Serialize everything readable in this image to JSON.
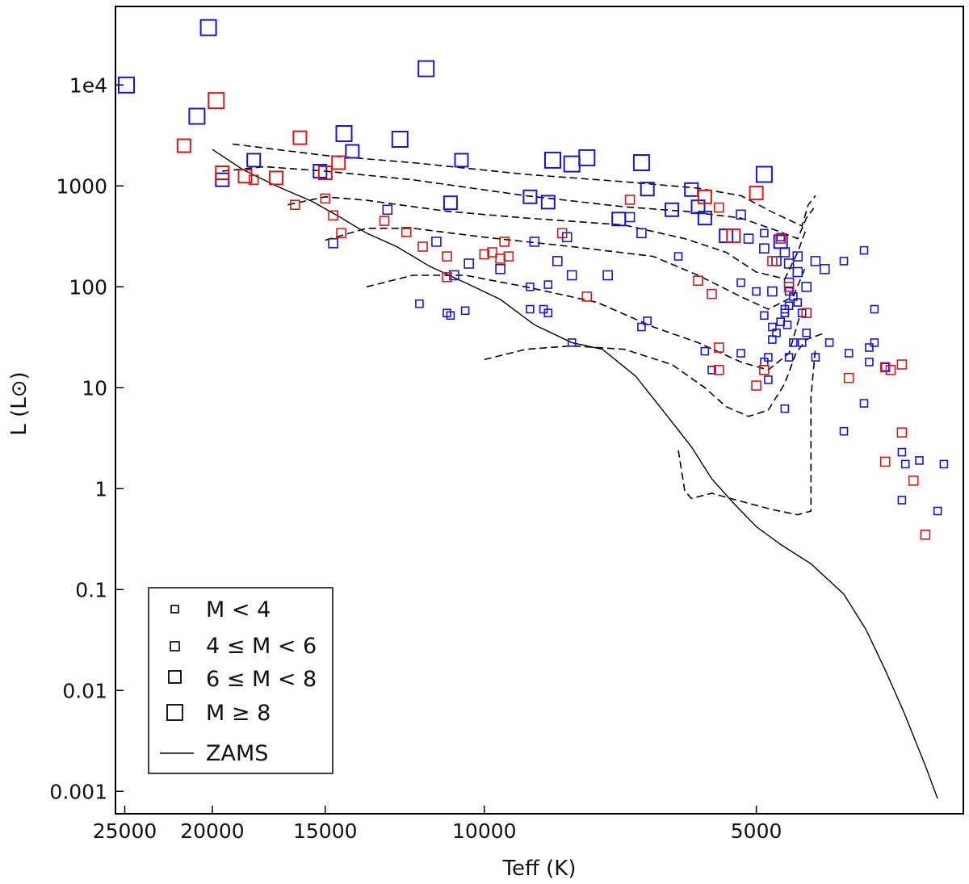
{
  "chart_data": {
    "type": "scatter",
    "title": "",
    "xlabel": "Teff (K)",
    "ylabel": "L (L⊙)",
    "x_scale": "log-reversed",
    "y_scale": "log",
    "xlim": [
      25600,
      2950
    ],
    "ylim": [
      0.0006,
      60000
    ],
    "x_ticks": [
      {
        "value": 25000,
        "label": "25000"
      },
      {
        "value": 20000,
        "label": "20000"
      },
      {
        "value": 15000,
        "label": "15000"
      },
      {
        "value": 10000,
        "label": "10000"
      },
      {
        "value": 5000,
        "label": "5000"
      }
    ],
    "y_ticks": [
      {
        "value": 10000,
        "label": "1e4"
      },
      {
        "value": 1000,
        "label": "1000"
      },
      {
        "value": 100,
        "label": "100"
      },
      {
        "value": 10,
        "label": "10"
      },
      {
        "value": 1,
        "label": "1"
      },
      {
        "value": 0.1,
        "label": "0.1"
      },
      {
        "value": 0.01,
        "label": "0.01"
      },
      {
        "value": 0.001,
        "label": "0.001"
      }
    ],
    "grid": false,
    "legend_position": "bottom-left",
    "legend": [
      {
        "label": "M < 4",
        "marker": "square",
        "size_class": 0
      },
      {
        "label": "4 ≤ M < 6",
        "marker": "square",
        "size_class": 1
      },
      {
        "label": "6 ≤ M < 8",
        "marker": "square",
        "size_class": 2
      },
      {
        "label": "M ≥ 8",
        "marker": "square",
        "size_class": 3
      },
      {
        "label": "ZAMS",
        "marker": "line"
      }
    ],
    "colors": {
      "blue": "#1515dd",
      "red": "#dd1515",
      "line": "#000000"
    },
    "zams": [
      [
        20000,
        2300
      ],
      [
        18500,
        1450
      ],
      [
        17000,
        1000
      ],
      [
        15500,
        700
      ],
      [
        14500,
        500
      ],
      [
        13500,
        340
      ],
      [
        12500,
        250
      ],
      [
        11500,
        160
      ],
      [
        10500,
        110
      ],
      [
        9600,
        75
      ],
      [
        8800,
        42
      ],
      [
        8000,
        28
      ],
      [
        7400,
        24
      ],
      [
        6800,
        13
      ],
      [
        6300,
        5.5
      ],
      [
        5900,
        2.6
      ],
      [
        5600,
        1.25
      ],
      [
        5300,
        0.72
      ],
      [
        5000,
        0.42
      ],
      [
        4700,
        0.28
      ],
      [
        4350,
        0.18
      ],
      [
        4000,
        0.09
      ],
      [
        3780,
        0.04
      ],
      [
        3600,
        0.016
      ],
      [
        3430,
        0.006
      ],
      [
        3250,
        0.0018
      ],
      [
        3150,
        0.00085
      ]
    ],
    "tracks": [
      [
        [
          19000,
          2600
        ],
        [
          17000,
          2300
        ],
        [
          15000,
          2000
        ],
        [
          12000,
          1700
        ],
        [
          9000,
          1300
        ],
        [
          7000,
          1100
        ],
        [
          5800,
          950
        ],
        [
          5200,
          800
        ],
        [
          4800,
          550
        ],
        [
          4450,
          400
        ],
        [
          4380,
          650
        ],
        [
          4300,
          800
        ]
      ],
      [
        [
          19500,
          1400
        ],
        [
          17500,
          1550
        ],
        [
          15000,
          1400
        ],
        [
          12000,
          1150
        ],
        [
          9000,
          800
        ],
        [
          7000,
          620
        ],
        [
          6000,
          560
        ],
        [
          5200,
          480
        ],
        [
          4700,
          350
        ],
        [
          4500,
          300
        ],
        [
          4400,
          480
        ],
        [
          4320,
          600
        ]
      ],
      [
        [
          16500,
          650
        ],
        [
          15000,
          780
        ],
        [
          13500,
          720
        ],
        [
          11000,
          560
        ],
        [
          9000,
          480
        ],
        [
          7000,
          410
        ],
        [
          6000,
          300
        ],
        [
          5400,
          220
        ],
        [
          5000,
          140
        ],
        [
          4650,
          120
        ],
        [
          4500,
          220
        ],
        [
          4400,
          380
        ]
      ],
      [
        [
          15000,
          290
        ],
        [
          13500,
          380
        ],
        [
          12000,
          380
        ],
        [
          10000,
          310
        ],
        [
          8000,
          250
        ],
        [
          6500,
          200
        ],
        [
          5800,
          130
        ],
        [
          5200,
          80
        ],
        [
          4850,
          60
        ],
        [
          4550,
          80
        ],
        [
          4420,
          150
        ]
      ],
      [
        [
          13500,
          100
        ],
        [
          12000,
          130
        ],
        [
          10500,
          130
        ],
        [
          9000,
          100
        ],
        [
          7500,
          70
        ],
        [
          6500,
          40
        ],
        [
          5800,
          28
        ],
        [
          5200,
          18
        ],
        [
          4850,
          15
        ],
        [
          4600,
          22
        ],
        [
          4480,
          50
        ]
      ],
      [
        [
          10000,
          19
        ],
        [
          9000,
          24
        ],
        [
          8000,
          26
        ],
        [
          7000,
          24
        ],
        [
          6200,
          17
        ],
        [
          5700,
          10
        ],
        [
          5400,
          6.5
        ],
        [
          5100,
          5.2
        ],
        [
          4850,
          6
        ],
        [
          4650,
          11
        ],
        [
          4520,
          22
        ],
        [
          4400,
          30
        ],
        [
          4200,
          35
        ]
      ],
      [
        [
          6100,
          2.4
        ],
        [
          6000,
          0.95
        ],
        [
          5900,
          0.8
        ],
        [
          5600,
          0.9
        ],
        [
          5200,
          0.75
        ],
        [
          4800,
          0.62
        ],
        [
          4500,
          0.55
        ],
        [
          4350,
          0.6
        ],
        [
          4350,
          8
        ],
        [
          4300,
          25
        ]
      ]
    ],
    "series": [
      {
        "name": "blue",
        "color": "blue",
        "points": [
          [
            24900,
            10000,
            3
          ],
          [
            20200,
            37000,
            3
          ],
          [
            20800,
            4900,
            3
          ],
          [
            11600,
            14500,
            3
          ],
          [
            14300,
            3300,
            3
          ],
          [
            12400,
            2900,
            3
          ],
          [
            8400,
            1800,
            3
          ],
          [
            7700,
            1900,
            3
          ],
          [
            8000,
            1650,
            3
          ],
          [
            6700,
            1700,
            3
          ],
          [
            4900,
            1300,
            3
          ],
          [
            14000,
            2200,
            2
          ],
          [
            18000,
            1800,
            2
          ],
          [
            19500,
            1150,
            2
          ],
          [
            15200,
            1400,
            2
          ],
          [
            10600,
            1800,
            2
          ],
          [
            6600,
            930,
            2
          ],
          [
            5900,
            920,
            2
          ],
          [
            5800,
            620,
            2
          ],
          [
            5700,
            480,
            2
          ],
          [
            6200,
            580,
            2
          ],
          [
            5400,
            320,
            2
          ],
          [
            4700,
            280,
            2
          ],
          [
            7100,
            470,
            2
          ],
          [
            10900,
            680,
            2
          ],
          [
            8900,
            780,
            2
          ],
          [
            8500,
            690,
            2
          ],
          [
            5100,
            300,
            1
          ],
          [
            4900,
            240,
            1
          ],
          [
            4750,
            180,
            1
          ],
          [
            4650,
            220,
            1
          ],
          [
            4500,
            200,
            1
          ],
          [
            4800,
            90,
            1
          ],
          [
            4600,
            110,
            1
          ],
          [
            6900,
            490,
            1
          ],
          [
            6700,
            340,
            1
          ],
          [
            7300,
            130,
            1
          ],
          [
            12800,
            580,
            1
          ],
          [
            14700,
            270,
            1
          ],
          [
            10400,
            170,
            1
          ],
          [
            9600,
            150,
            1
          ],
          [
            11300,
            280,
            1
          ],
          [
            10800,
            130,
            1
          ],
          [
            8800,
            280,
            1
          ],
          [
            8000,
            130,
            1
          ],
          [
            8100,
            310,
            1
          ],
          [
            8300,
            180,
            1
          ],
          [
            6100,
            200,
            0
          ],
          [
            5200,
            520,
            1
          ],
          [
            4600,
            170,
            1
          ],
          [
            4500,
            140,
            1
          ],
          [
            4400,
            100,
            1
          ],
          [
            4300,
            180,
            1
          ],
          [
            4200,
            150,
            1
          ],
          [
            3800,
            230,
            0
          ],
          [
            4000,
            180,
            0
          ],
          [
            4550,
            80,
            0
          ],
          [
            4600,
            65,
            0
          ],
          [
            4650,
            55,
            0
          ],
          [
            4700,
            45,
            0
          ],
          [
            4750,
            35,
            0
          ],
          [
            4800,
            30,
            0
          ],
          [
            4850,
            20,
            0
          ],
          [
            4900,
            18,
            0
          ],
          [
            4850,
            12,
            0
          ],
          [
            4900,
            52,
            0
          ],
          [
            4620,
            42,
            0
          ],
          [
            4650,
            60,
            0
          ],
          [
            4600,
            90,
            0
          ],
          [
            4500,
            70,
            0
          ],
          [
            4450,
            55,
            0
          ],
          [
            4550,
            28,
            0
          ],
          [
            4600,
            20,
            0
          ],
          [
            4450,
            28,
            0
          ],
          [
            4400,
            35,
            0
          ],
          [
            4300,
            20,
            0
          ],
          [
            4150,
            28,
            0
          ],
          [
            3950,
            22,
            0
          ],
          [
            3750,
            25,
            0
          ],
          [
            3700,
            28,
            0
          ],
          [
            3750,
            18,
            0
          ],
          [
            3600,
            16,
            0
          ],
          [
            3800,
            7,
            0
          ],
          [
            4650,
            6.2,
            0
          ],
          [
            4000,
            3.7,
            0
          ],
          [
            3700,
            60,
            0
          ],
          [
            3450,
            2.3,
            0
          ],
          [
            3420,
            1.75,
            0
          ],
          [
            3300,
            1.9,
            0
          ],
          [
            3100,
            1.75,
            0
          ],
          [
            3150,
            0.6,
            0
          ],
          [
            3450,
            0.77,
            0
          ],
          [
            11800,
            68,
            0
          ],
          [
            10900,
            52,
            0
          ],
          [
            11000,
            55,
            0
          ],
          [
            10500,
            58,
            0
          ],
          [
            8900,
            60,
            0
          ],
          [
            8600,
            60,
            0
          ],
          [
            8500,
            55,
            0
          ],
          [
            8900,
            100,
            0
          ],
          [
            8500,
            105,
            0
          ],
          [
            8000,
            28,
            0
          ],
          [
            6700,
            40,
            0
          ],
          [
            6600,
            46,
            0
          ],
          [
            5700,
            23,
            0
          ],
          [
            5600,
            15,
            0
          ],
          [
            5200,
            22,
            0
          ],
          [
            4800,
            40,
            0
          ],
          [
            5000,
            90,
            0
          ],
          [
            5200,
            110,
            0
          ],
          [
            4700,
            310,
            0
          ],
          [
            4900,
            340,
            0
          ]
        ]
      },
      {
        "name": "red",
        "color": "red",
        "points": [
          [
            21500,
            2500,
            2
          ],
          [
            19800,
            7000,
            3
          ],
          [
            16000,
            3000,
            2
          ],
          [
            19500,
            1350,
            2
          ],
          [
            18400,
            1250,
            2
          ],
          [
            17000,
            1200,
            2
          ],
          [
            15000,
            1350,
            2
          ],
          [
            14500,
            1700,
            2
          ],
          [
            18000,
            1150,
            1
          ],
          [
            16200,
            650,
            1
          ],
          [
            15000,
            750,
            1
          ],
          [
            5700,
            780,
            2
          ],
          [
            6900,
            730,
            1
          ],
          [
            5000,
            850,
            2
          ],
          [
            5300,
            320,
            2
          ],
          [
            4700,
            300,
            1
          ],
          [
            4800,
            180,
            1
          ],
          [
            4600,
            100,
            1
          ],
          [
            5500,
            610,
            1
          ],
          [
            14700,
            510,
            1
          ],
          [
            12900,
            450,
            1
          ],
          [
            14400,
            340,
            1
          ],
          [
            12200,
            350,
            1
          ],
          [
            11700,
            250,
            1
          ],
          [
            11000,
            200,
            1
          ],
          [
            10000,
            210,
            1
          ],
          [
            9800,
            220,
            1
          ],
          [
            9600,
            190,
            1
          ],
          [
            9500,
            280,
            1
          ],
          [
            9400,
            200,
            1
          ],
          [
            11000,
            125,
            1
          ],
          [
            8200,
            340,
            1
          ],
          [
            7700,
            80,
            1
          ],
          [
            5800,
            115,
            1
          ],
          [
            5600,
            85,
            1
          ],
          [
            5500,
            25,
            1
          ],
          [
            5500,
            15,
            1
          ],
          [
            4900,
            15,
            1
          ],
          [
            5000,
            10.5,
            1
          ],
          [
            4400,
            55,
            1
          ],
          [
            3950,
            12.5,
            1
          ],
          [
            3600,
            16,
            1
          ],
          [
            3550,
            15,
            1
          ],
          [
            3450,
            17,
            1
          ],
          [
            3450,
            3.6,
            1
          ],
          [
            3600,
            1.85,
            1
          ],
          [
            3350,
            1.2,
            1
          ],
          [
            3250,
            0.35,
            1
          ]
        ]
      }
    ]
  }
}
